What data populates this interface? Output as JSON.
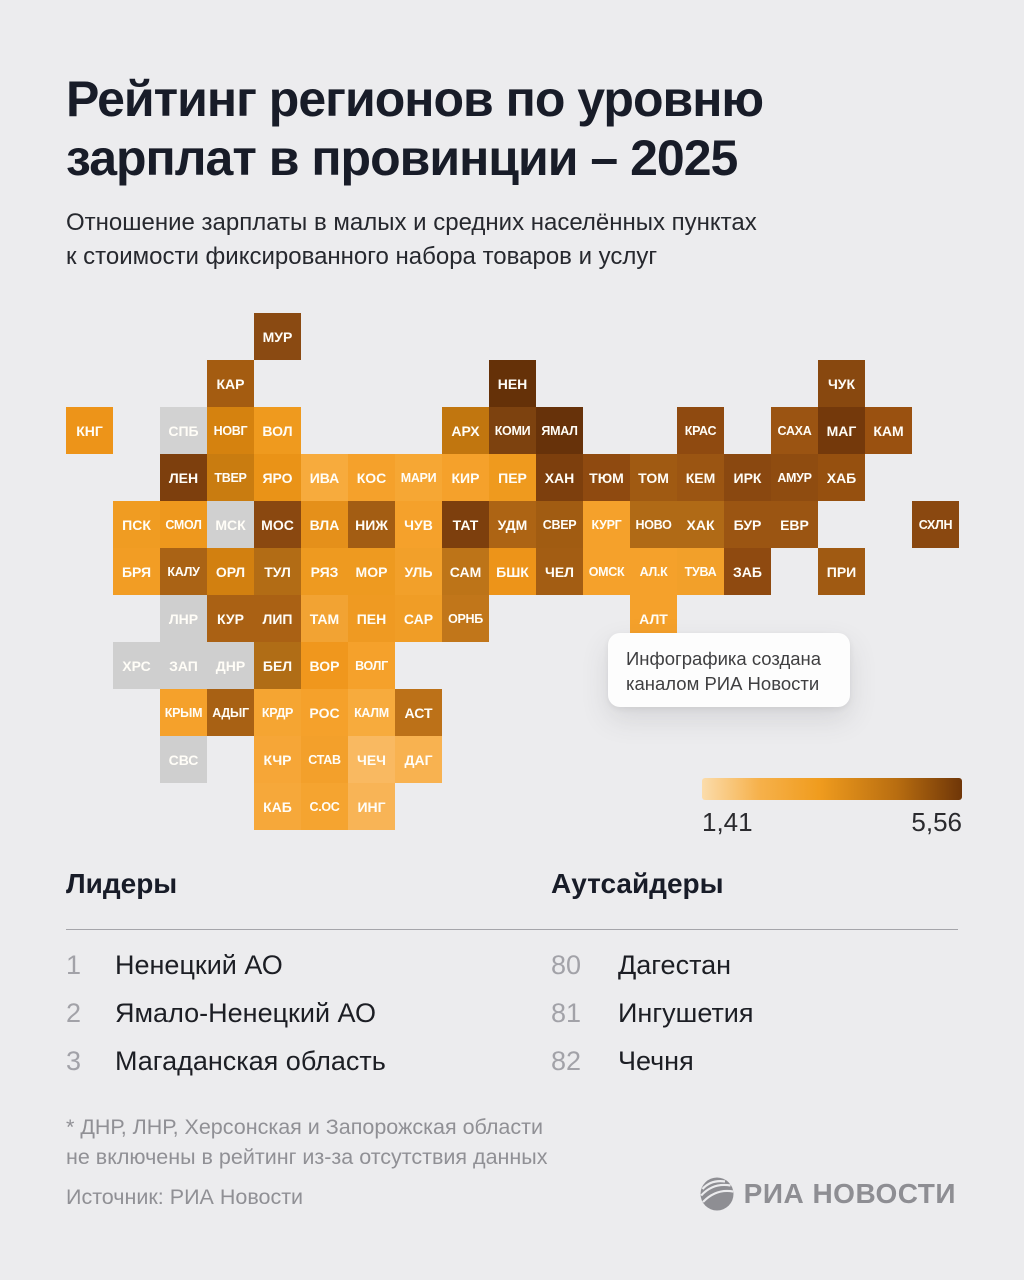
{
  "title": {
    "line1": "Рейтинг регионов по уровню",
    "line2": "зарплат в провинции – 2025"
  },
  "subtitle": {
    "line1": "Отношение зарплаты в малых и средних населённых пунктах",
    "line2": "к стоимости фиксированного набора товаров и услуг"
  },
  "note_card": {
    "line1": "Инфографика создана",
    "line2": "каналом РИА Новости"
  },
  "legend": {
    "min_label": "1,41",
    "max_label": "5,56"
  },
  "leaders": {
    "title": "Лидеры",
    "items": [
      {
        "rank": "1",
        "name": "Ненецкий АО"
      },
      {
        "rank": "2",
        "name": "Ямало-Ненецкий АО"
      },
      {
        "rank": "3",
        "name": "Магаданская область"
      }
    ]
  },
  "outsiders": {
    "title": "Аутсайдеры",
    "items": [
      {
        "rank": "80",
        "name": "Дагестан"
      },
      {
        "rank": "81",
        "name": "Ингушетия"
      },
      {
        "rank": "82",
        "name": "Чечня"
      }
    ]
  },
  "footnote": {
    "line1": "* ДНР, ЛНР, Херсонская и Запорожская области",
    "line2": "не включены в рейтинг из-за отсутствия данных"
  },
  "source": "Источник: РИА Новости",
  "logo_text": "РИА НОВОСТИ",
  "chart_data": {
    "type": "heatmap",
    "title": "Рейтинг регионов по уровню зарплат в провинции – 2025",
    "subtitle": "Отношение зарплаты в малых и средних населённых пунктах к стоимости фиксированного набора товаров и услуг",
    "colorbar": {
      "min": 1.41,
      "max": 5.56,
      "gradient": [
        "#fbdcab",
        "#f09c1e",
        "#6f3608"
      ],
      "position": "bottom-right"
    },
    "no_data_color": "#d0d0d0",
    "tiles": [
      {
        "label": "МУР",
        "row": 0,
        "col": 4,
        "color": "#8a4a12"
      },
      {
        "label": "КАР",
        "row": 1,
        "col": 3,
        "color": "#a45c11"
      },
      {
        "label": "НЕН",
        "row": 1,
        "col": 9,
        "color": "#653108"
      },
      {
        "label": "ЧУК",
        "row": 1,
        "col": 16,
        "color": "#88480f"
      },
      {
        "label": "КНГ",
        "row": 2,
        "col": 0,
        "color": "#ed9419"
      },
      {
        "label": "СПБ",
        "row": 2,
        "col": 2,
        "color": "#d2d2d2"
      },
      {
        "label": "НОВГ",
        "row": 2,
        "col": 3,
        "color": "#d5820f"
      },
      {
        "label": "ВОЛ",
        "row": 2,
        "col": 4,
        "color": "#ef9a1e"
      },
      {
        "label": "АРХ",
        "row": 2,
        "col": 8,
        "color": "#c1760f"
      },
      {
        "label": "КОМИ",
        "row": 2,
        "col": 9,
        "color": "#7d420f"
      },
      {
        "label": "ЯМАЛ",
        "row": 2,
        "col": 10,
        "color": "#67320a"
      },
      {
        "label": "КРАС",
        "row": 2,
        "col": 13,
        "color": "#8f4a10"
      },
      {
        "label": "САХА",
        "row": 2,
        "col": 15,
        "color": "#9b5412"
      },
      {
        "label": "МАГ",
        "row": 2,
        "col": 16,
        "color": "#74390b"
      },
      {
        "label": "КАМ",
        "row": 2,
        "col": 17,
        "color": "#9a5110"
      },
      {
        "label": "ЛЕН",
        "row": 3,
        "col": 2,
        "color": "#7d3f0d"
      },
      {
        "label": "ТВЕР",
        "row": 3,
        "col": 3,
        "color": "#c97c10"
      },
      {
        "label": "ЯРО",
        "row": 3,
        "col": 4,
        "color": "#ea9317"
      },
      {
        "label": "ИВА",
        "row": 3,
        "col": 5,
        "color": "#f7ab3d"
      },
      {
        "label": "КОС",
        "row": 3,
        "col": 6,
        "color": "#f5a12b"
      },
      {
        "label": "МАРИ",
        "row": 3,
        "col": 7,
        "color": "#f6a734"
      },
      {
        "label": "КИР",
        "row": 3,
        "col": 8,
        "color": "#f5a12b"
      },
      {
        "label": "ПЕР",
        "row": 3,
        "col": 9,
        "color": "#ef9a1e"
      },
      {
        "label": "ХАН",
        "row": 3,
        "col": 10,
        "color": "#7d3f0d"
      },
      {
        "label": "ТЮМ",
        "row": 3,
        "col": 11,
        "color": "#8f4a10"
      },
      {
        "label": "ТОМ",
        "row": 3,
        "col": 12,
        "color": "#a05a12"
      },
      {
        "label": "КЕМ",
        "row": 3,
        "col": 13,
        "color": "#9b5512"
      },
      {
        "label": "ИРК",
        "row": 3,
        "col": 14,
        "color": "#8a4810"
      },
      {
        "label": "АМУР",
        "row": 3,
        "col": 15,
        "color": "#8f4c10"
      },
      {
        "label": "ХАБ",
        "row": 3,
        "col": 16,
        "color": "#96500f"
      },
      {
        "label": "ПСК",
        "row": 4,
        "col": 1,
        "color": "#f09c22"
      },
      {
        "label": "СМОЛ",
        "row": 4,
        "col": 2,
        "color": "#ee981d"
      },
      {
        "label": "МСК",
        "row": 4,
        "col": 3,
        "color": "#d0d0d0"
      },
      {
        "label": "МОС",
        "row": 4,
        "col": 4,
        "color": "#8a4810"
      },
      {
        "label": "ВЛА",
        "row": 4,
        "col": 5,
        "color": "#e5901a"
      },
      {
        "label": "НИЖ",
        "row": 4,
        "col": 6,
        "color": "#a35d13"
      },
      {
        "label": "ЧУВ",
        "row": 4,
        "col": 7,
        "color": "#f5a12b"
      },
      {
        "label": "ТАТ",
        "row": 4,
        "col": 8,
        "color": "#7d3f0d"
      },
      {
        "label": "УДМ",
        "row": 4,
        "col": 9,
        "color": "#ad6414"
      },
      {
        "label": "СВЕР",
        "row": 4,
        "col": 10,
        "color": "#a15c12"
      },
      {
        "label": "КУРГ",
        "row": 4,
        "col": 11,
        "color": "#f5a12b"
      },
      {
        "label": "НОВО",
        "row": 4,
        "col": 12,
        "color": "#b06a16"
      },
      {
        "label": "ХАК",
        "row": 4,
        "col": 13,
        "color": "#b06a16"
      },
      {
        "label": "БУР",
        "row": 4,
        "col": 14,
        "color": "#9b5512"
      },
      {
        "label": "ЕВР",
        "row": 4,
        "col": 15,
        "color": "#9b5512"
      },
      {
        "label": "СХЛН",
        "row": 4,
        "col": 18,
        "color": "#8a4810"
      },
      {
        "label": "БРЯ",
        "row": 5,
        "col": 1,
        "color": "#f29d24"
      },
      {
        "label": "КАЛУ",
        "row": 5,
        "col": 2,
        "color": "#aa6315"
      },
      {
        "label": "ОРЛ",
        "row": 5,
        "col": 3,
        "color": "#d28010"
      },
      {
        "label": "ТУЛ",
        "row": 5,
        "col": 4,
        "color": "#b26c15"
      },
      {
        "label": "РЯЗ",
        "row": 5,
        "col": 5,
        "color": "#ee9a20"
      },
      {
        "label": "МОР",
        "row": 5,
        "col": 6,
        "color": "#ee9a20"
      },
      {
        "label": "УЛЬ",
        "row": 5,
        "col": 7,
        "color": "#f2a02a"
      },
      {
        "label": "САМ",
        "row": 5,
        "col": 8,
        "color": "#bd7418"
      },
      {
        "label": "БШК",
        "row": 5,
        "col": 9,
        "color": "#ed9419"
      },
      {
        "label": "ЧЕЛ",
        "row": 5,
        "col": 10,
        "color": "#a35d13"
      },
      {
        "label": "ОМСК",
        "row": 5,
        "col": 11,
        "color": "#f5a12b"
      },
      {
        "label": "АЛ.К",
        "row": 5,
        "col": 12,
        "color": "#f5a12b"
      },
      {
        "label": "ТУВА",
        "row": 5,
        "col": 13,
        "color": "#f2a02a"
      },
      {
        "label": "ЗАБ",
        "row": 5,
        "col": 14,
        "color": "#8f4a10"
      },
      {
        "label": "ПРИ",
        "row": 5,
        "col": 16,
        "color": "#a05a12"
      },
      {
        "label": "ЛНР",
        "row": 6,
        "col": 2,
        "color": "#cfcfcf"
      },
      {
        "label": "КУР",
        "row": 6,
        "col": 3,
        "color": "#aa6114"
      },
      {
        "label": "ЛИП",
        "row": 6,
        "col": 4,
        "color": "#aa6114"
      },
      {
        "label": "ТАМ",
        "row": 6,
        "col": 5,
        "color": "#f2a333"
      },
      {
        "label": "ПЕН",
        "row": 6,
        "col": 6,
        "color": "#ef9a22"
      },
      {
        "label": "САР",
        "row": 6,
        "col": 7,
        "color": "#f09d26"
      },
      {
        "label": "ОРНБ",
        "row": 6,
        "col": 8,
        "color": "#c1761a"
      },
      {
        "label": "АЛТ",
        "row": 6,
        "col": 12,
        "color": "#f5a12b"
      },
      {
        "label": "ХРС",
        "row": 7,
        "col": 1,
        "color": "#cfcfcf"
      },
      {
        "label": "ЗАП",
        "row": 7,
        "col": 2,
        "color": "#cfcfcf"
      },
      {
        "label": "ДНР",
        "row": 7,
        "col": 3,
        "color": "#cfcfcf"
      },
      {
        "label": "БЕЛ",
        "row": 7,
        "col": 4,
        "color": "#b06d16"
      },
      {
        "label": "ВОР",
        "row": 7,
        "col": 5,
        "color": "#f0971d"
      },
      {
        "label": "ВОЛГ",
        "row": 7,
        "col": 6,
        "color": "#f5a12b"
      },
      {
        "label": "КРЫМ",
        "row": 8,
        "col": 2,
        "color": "#f5a12b"
      },
      {
        "label": "АДЫГ",
        "row": 8,
        "col": 3,
        "color": "#a86114"
      },
      {
        "label": "КРДР",
        "row": 8,
        "col": 4,
        "color": "#f5a532"
      },
      {
        "label": "РОС",
        "row": 8,
        "col": 5,
        "color": "#f5a12b"
      },
      {
        "label": "КАЛМ",
        "row": 8,
        "col": 6,
        "color": "#f7ab3d"
      },
      {
        "label": "АСТ",
        "row": 8,
        "col": 7,
        "color": "#bc7118"
      },
      {
        "label": "СВС",
        "row": 9,
        "col": 2,
        "color": "#cfcfcf"
      },
      {
        "label": "КЧР",
        "row": 9,
        "col": 4,
        "color": "#f6a637"
      },
      {
        "label": "СТАВ",
        "row": 9,
        "col": 5,
        "color": "#f3a02b"
      },
      {
        "label": "ЧЕЧ",
        "row": 9,
        "col": 6,
        "color": "#f9b961"
      },
      {
        "label": "ДАГ",
        "row": 9,
        "col": 7,
        "color": "#f8b250"
      },
      {
        "label": "КАБ",
        "row": 10,
        "col": 4,
        "color": "#f6a83a"
      },
      {
        "label": "С.ОС",
        "row": 10,
        "col": 5,
        "color": "#f5a430"
      },
      {
        "label": "ИНГ",
        "row": 10,
        "col": 6,
        "color": "#f8b456"
      }
    ]
  }
}
